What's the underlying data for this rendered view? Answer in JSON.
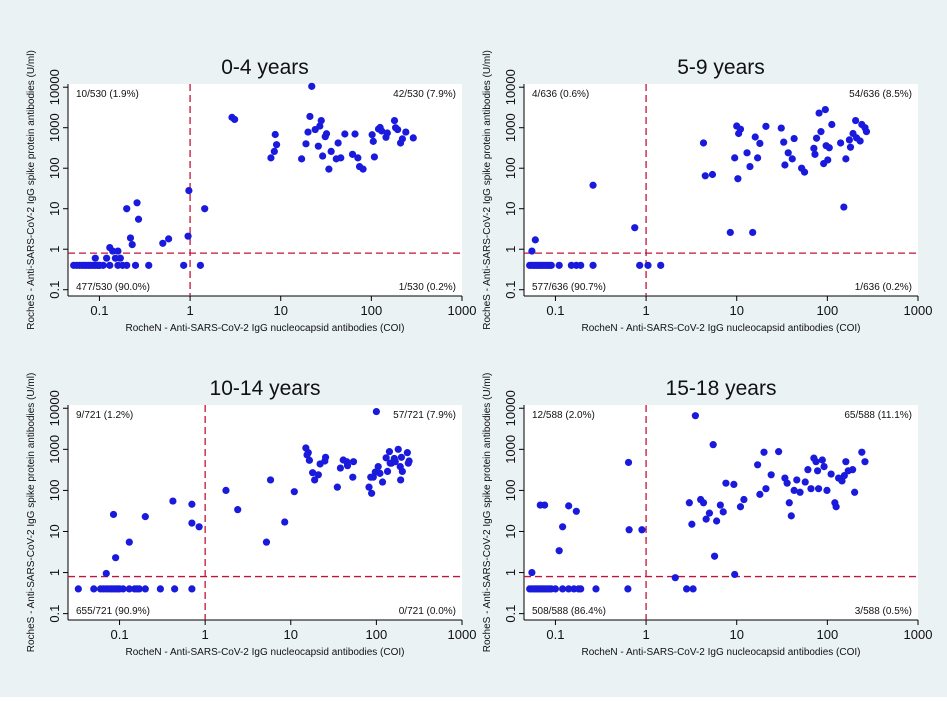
{
  "figure": {
    "background": "#eaf2f3",
    "marker_color": "#1a1adc",
    "reference_line_color": "#c0143c"
  },
  "chart_data": [
    {
      "type": "scatter",
      "title": "0-4 years",
      "xlabel": "RocheN - Anti-SARS-CoV-2 IgG nucleocapsid antibodies (COI)",
      "ylabel": "RocheS - Anti-SARS-CoV-2 IgG spike protein antibodies (U/ml)",
      "xscale": "log",
      "yscale": "log",
      "xlim": [
        0.045,
        1000
      ],
      "ylim": [
        0.07,
        12000
      ],
      "xticks": [
        "0.1",
        "1",
        "10",
        "100",
        "1000"
      ],
      "yticks": [
        "0.1",
        "1",
        "10",
        "100",
        "1000",
        "10000"
      ],
      "vline": 1,
      "hline": 0.8,
      "quadrant_labels": {
        "top_left": "10/530 (1.9%)",
        "top_right": "42/530 (7.9%)",
        "bottom_left": "477/530 (90.0%)",
        "bottom_right": "1/530 (0.2%)"
      },
      "points": [
        [
          0.052,
          0.4
        ],
        [
          0.056,
          0.4
        ],
        [
          0.06,
          0.4
        ],
        [
          0.064,
          0.4
        ],
        [
          0.068,
          0.4
        ],
        [
          0.072,
          0.4
        ],
        [
          0.076,
          0.4
        ],
        [
          0.08,
          0.4
        ],
        [
          0.085,
          0.4
        ],
        [
          0.09,
          0.4
        ],
        [
          0.095,
          0.4
        ],
        [
          0.1,
          0.4
        ],
        [
          0.11,
          0.4
        ],
        [
          0.13,
          0.4
        ],
        [
          0.16,
          0.4
        ],
        [
          0.18,
          0.4
        ],
        [
          0.2,
          0.4
        ],
        [
          0.25,
          0.4
        ],
        [
          0.35,
          0.4
        ],
        [
          0.85,
          0.4
        ],
        [
          0.09,
          0.6
        ],
        [
          0.1,
          0.4
        ],
        [
          0.12,
          0.6
        ],
        [
          0.13,
          1.1
        ],
        [
          0.14,
          0.9
        ],
        [
          0.15,
          0.6
        ],
        [
          0.16,
          0.9
        ],
        [
          0.17,
          0.6
        ],
        [
          0.2,
          10
        ],
        [
          0.22,
          1.9
        ],
        [
          0.23,
          1.3
        ],
        [
          0.26,
          14
        ],
        [
          0.27,
          5.5
        ],
        [
          0.5,
          1.4
        ],
        [
          0.58,
          1.8
        ],
        [
          0.95,
          2.1
        ],
        [
          0.97,
          28
        ],
        [
          1.3,
          0.4
        ],
        [
          1.45,
          10
        ],
        [
          2.9,
          1800
        ],
        [
          3.1,
          1600
        ],
        [
          7.8,
          180
        ],
        [
          8.5,
          260
        ],
        [
          8.7,
          680
        ],
        [
          9,
          380
        ],
        [
          17,
          170
        ],
        [
          19,
          400
        ],
        [
          20,
          780
        ],
        [
          21,
          1900
        ],
        [
          22,
          10500
        ],
        [
          24,
          900
        ],
        [
          26,
          350
        ],
        [
          27,
          1100
        ],
        [
          28,
          1500
        ],
        [
          29,
          200
        ],
        [
          31,
          600
        ],
        [
          32,
          710
        ],
        [
          34,
          95
        ],
        [
          36,
          260
        ],
        [
          41,
          170
        ],
        [
          43,
          420
        ],
        [
          46,
          180
        ],
        [
          51,
          700
        ],
        [
          62,
          220
        ],
        [
          66,
          700
        ],
        [
          71,
          180
        ],
        [
          74,
          110
        ],
        [
          81,
          95
        ],
        [
          102,
          670
        ],
        [
          105,
          460
        ],
        [
          108,
          190
        ],
        [
          120,
          930
        ],
        [
          125,
          1010
        ],
        [
          130,
          830
        ],
        [
          145,
          580
        ],
        [
          150,
          740
        ],
        [
          180,
          1500
        ],
        [
          185,
          1000
        ],
        [
          195,
          900
        ],
        [
          210,
          420
        ],
        [
          220,
          530
        ],
        [
          240,
          780
        ],
        [
          290,
          560
        ]
      ]
    },
    {
      "type": "scatter",
      "title": "5-9 years",
      "xlabel": "RocheN - Anti-SARS-CoV-2 IgG nucleocapsid antibodies (COI)",
      "ylabel": "RocheS - Anti-SARS-CoV-2 IgG spike protein antibodies (U/ml)",
      "xscale": "log",
      "yscale": "log",
      "xlim": [
        0.045,
        1000
      ],
      "ylim": [
        0.07,
        12000
      ],
      "xticks": [
        "0.1",
        "1",
        "10",
        "100",
        "1000"
      ],
      "yticks": [
        "0.1",
        "1",
        "10",
        "100",
        "1000",
        "10000"
      ],
      "vline": 1,
      "hline": 0.8,
      "quadrant_labels": {
        "top_left": "4/636 (0.6%)",
        "top_right": "54/636 (8.5%)",
        "bottom_left": "577/636 (90.7%)",
        "bottom_right": "1/636 (0.2%)"
      },
      "points": [
        [
          0.052,
          0.4
        ],
        [
          0.055,
          0.4
        ],
        [
          0.058,
          0.4
        ],
        [
          0.061,
          0.4
        ],
        [
          0.064,
          0.4
        ],
        [
          0.067,
          0.4
        ],
        [
          0.07,
          0.4
        ],
        [
          0.074,
          0.4
        ],
        [
          0.078,
          0.4
        ],
        [
          0.082,
          0.4
        ],
        [
          0.086,
          0.4
        ],
        [
          0.09,
          0.4
        ],
        [
          0.11,
          0.4
        ],
        [
          0.15,
          0.4
        ],
        [
          0.17,
          0.4
        ],
        [
          0.19,
          0.4
        ],
        [
          0.26,
          0.4
        ],
        [
          0.85,
          0.4
        ],
        [
          1.05,
          0.4
        ],
        [
          1.45,
          0.4
        ],
        [
          0.055,
          0.9
        ],
        [
          0.06,
          1.7
        ],
        [
          0.26,
          38
        ],
        [
          0.75,
          3.4
        ],
        [
          4.3,
          420
        ],
        [
          4.5,
          65
        ],
        [
          5.4,
          70
        ],
        [
          8.5,
          2.6
        ],
        [
          9.5,
          180
        ],
        [
          10,
          1100
        ],
        [
          10.3,
          55
        ],
        [
          10.5,
          720
        ],
        [
          11,
          920
        ],
        [
          13,
          240
        ],
        [
          14,
          110
        ],
        [
          15,
          2.6
        ],
        [
          16,
          590
        ],
        [
          17,
          180
        ],
        [
          18,
          410
        ],
        [
          21,
          1080
        ],
        [
          31,
          980
        ],
        [
          33,
          440
        ],
        [
          34,
          120
        ],
        [
          37,
          240
        ],
        [
          41,
          170
        ],
        [
          43,
          540
        ],
        [
          52,
          100
        ],
        [
          56,
          80
        ],
        [
          71,
          310
        ],
        [
          73,
          220
        ],
        [
          76,
          550
        ],
        [
          81,
          2300
        ],
        [
          85,
          800
        ],
        [
          91,
          130
        ],
        [
          95,
          2800
        ],
        [
          97,
          360
        ],
        [
          101,
          160
        ],
        [
          105,
          320
        ],
        [
          112,
          1200
        ],
        [
          140,
          420
        ],
        [
          152,
          11
        ],
        [
          160,
          170
        ],
        [
          175,
          500
        ],
        [
          180,
          330
        ],
        [
          192,
          720
        ],
        [
          205,
          1500
        ],
        [
          210,
          560
        ],
        [
          230,
          470
        ],
        [
          240,
          1200
        ],
        [
          260,
          1000
        ],
        [
          270,
          800
        ]
      ]
    },
    {
      "type": "scatter",
      "title": "10-14 years",
      "xlabel": "RocheN - Anti-SARS-CoV-2 IgG nucleocapsid antibodies (COI)",
      "ylabel": "RocheS - Anti-SARS-CoV-2 IgG spike protein antibodies (U/ml)",
      "xscale": "log",
      "yscale": "log",
      "xlim": [
        0.025,
        1000
      ],
      "ylim": [
        0.07,
        12000
      ],
      "xticks": [
        "0.1",
        "1",
        "10",
        "100",
        "1000"
      ],
      "yticks": [
        "0.1",
        "1",
        "10",
        "100",
        "1000",
        "10000"
      ],
      "vline": 1,
      "hline": 0.8,
      "quadrant_labels": {
        "top_left": "9/721 (1.2%)",
        "top_right": "57/721 (7.9%)",
        "bottom_left": "655/721 (90.9%)",
        "bottom_right": "0/721 (0.0%)"
      },
      "points": [
        [
          0.033,
          0.4
        ],
        [
          0.05,
          0.4
        ],
        [
          0.06,
          0.4
        ],
        [
          0.065,
          0.4
        ],
        [
          0.07,
          0.4
        ],
        [
          0.075,
          0.4
        ],
        [
          0.08,
          0.4
        ],
        [
          0.085,
          0.4
        ],
        [
          0.09,
          0.4
        ],
        [
          0.095,
          0.4
        ],
        [
          0.1,
          0.4
        ],
        [
          0.11,
          0.4
        ],
        [
          0.13,
          0.4
        ],
        [
          0.15,
          0.4
        ],
        [
          0.16,
          0.4
        ],
        [
          0.17,
          0.4
        ],
        [
          0.2,
          0.4
        ],
        [
          0.3,
          0.4
        ],
        [
          0.44,
          0.4
        ],
        [
          0.7,
          0.4
        ],
        [
          0.07,
          0.95
        ],
        [
          0.085,
          26
        ],
        [
          0.09,
          2.3
        ],
        [
          0.13,
          5.5
        ],
        [
          0.2,
          23
        ],
        [
          0.42,
          55
        ],
        [
          0.7,
          16
        ],
        [
          0.7,
          46
        ],
        [
          0.85,
          13
        ],
        [
          1.75,
          100
        ],
        [
          2.4,
          34
        ],
        [
          5.2,
          5.5
        ],
        [
          5.8,
          180
        ],
        [
          8.5,
          17
        ],
        [
          11,
          93
        ],
        [
          15,
          1080
        ],
        [
          15.5,
          730
        ],
        [
          16,
          830
        ],
        [
          16.5,
          540
        ],
        [
          18,
          270
        ],
        [
          19,
          180
        ],
        [
          21,
          240
        ],
        [
          22,
          440
        ],
        [
          25,
          520
        ],
        [
          25.5,
          640
        ],
        [
          35,
          120
        ],
        [
          38,
          350
        ],
        [
          41,
          550
        ],
        [
          45,
          500
        ],
        [
          46,
          400
        ],
        [
          53,
          210
        ],
        [
          54,
          500
        ],
        [
          82,
          120
        ],
        [
          86,
          210
        ],
        [
          88,
          85
        ],
        [
          92,
          210
        ],
        [
          97,
          280
        ],
        [
          100,
          8300
        ],
        [
          105,
          380
        ],
        [
          110,
          260
        ],
        [
          118,
          160
        ],
        [
          130,
          620
        ],
        [
          135,
          290
        ],
        [
          142,
          880
        ],
        [
          145,
          460
        ],
        [
          150,
          460
        ],
        [
          162,
          600
        ],
        [
          166,
          500
        ],
        [
          180,
          1000
        ],
        [
          190,
          380
        ],
        [
          192,
          180
        ],
        [
          196,
          640
        ],
        [
          201,
          290
        ],
        [
          230,
          830
        ],
        [
          236,
          460
        ],
        [
          241,
          520
        ]
      ]
    },
    {
      "type": "scatter",
      "title": "15-18 years",
      "xlabel": "RocheN - Anti-SARS-CoV-2 IgG nucleocapsid antibodies (COI)",
      "ylabel": "RocheS - Anti-SARS-CoV-2 IgG spike protein antibodies (U/ml)",
      "xscale": "log",
      "yscale": "log",
      "xlim": [
        0.045,
        1000
      ],
      "ylim": [
        0.07,
        12000
      ],
      "xticks": [
        "0.1",
        "1",
        "10",
        "100",
        "1000"
      ],
      "yticks": [
        "0.1",
        "1",
        "10",
        "100",
        "1000",
        "10000"
      ],
      "vline": 1,
      "hline": 0.8,
      "quadrant_labels": {
        "top_left": "12/588 (2.0%)",
        "top_right": "65/588 (11.1%)",
        "bottom_left": "508/588 (86.4%)",
        "bottom_right": "3/588 (0.5%)"
      },
      "points": [
        [
          0.052,
          0.4
        ],
        [
          0.055,
          0.4
        ],
        [
          0.058,
          0.4
        ],
        [
          0.061,
          0.4
        ],
        [
          0.064,
          0.4
        ],
        [
          0.067,
          0.4
        ],
        [
          0.07,
          0.4
        ],
        [
          0.074,
          0.4
        ],
        [
          0.078,
          0.4
        ],
        [
          0.082,
          0.4
        ],
        [
          0.086,
          0.4
        ],
        [
          0.09,
          0.4
        ],
        [
          0.1,
          0.4
        ],
        [
          0.12,
          0.4
        ],
        [
          0.14,
          0.4
        ],
        [
          0.16,
          0.4
        ],
        [
          0.18,
          0.4
        ],
        [
          0.19,
          0.4
        ],
        [
          0.28,
          0.4
        ],
        [
          0.63,
          0.4
        ],
        [
          2.8,
          0.4
        ],
        [
          3.3,
          0.4
        ],
        [
          0.055,
          1.0
        ],
        [
          0.068,
          44
        ],
        [
          0.076,
          44
        ],
        [
          0.11,
          3.4
        ],
        [
          0.12,
          13
        ],
        [
          0.14,
          42
        ],
        [
          0.17,
          31
        ],
        [
          0.64,
          480
        ],
        [
          0.65,
          11
        ],
        [
          0.9,
          11
        ],
        [
          2.1,
          0.75
        ],
        [
          3.0,
          50
        ],
        [
          3.2,
          15
        ],
        [
          3.5,
          6600
        ],
        [
          4,
          60
        ],
        [
          4.3,
          50
        ],
        [
          4.6,
          20
        ],
        [
          5,
          28
        ],
        [
          5.5,
          1300
        ],
        [
          5.7,
          2.5
        ],
        [
          6,
          18
        ],
        [
          6.6,
          44
        ],
        [
          7.1,
          30
        ],
        [
          7.6,
          150
        ],
        [
          9.3,
          140
        ],
        [
          9.5,
          0.9
        ],
        [
          11,
          40
        ],
        [
          12,
          60
        ],
        [
          17,
          420
        ],
        [
          18,
          80
        ],
        [
          20,
          850
        ],
        [
          21,
          110
        ],
        [
          24,
          240
        ],
        [
          29,
          880
        ],
        [
          34,
          200
        ],
        [
          36,
          150
        ],
        [
          38,
          50
        ],
        [
          40,
          24
        ],
        [
          43,
          100
        ],
        [
          46,
          180
        ],
        [
          50,
          90
        ],
        [
          57,
          160
        ],
        [
          61,
          320
        ],
        [
          66,
          110
        ],
        [
          71,
          610
        ],
        [
          75,
          500
        ],
        [
          78,
          300
        ],
        [
          80,
          110
        ],
        [
          88,
          550
        ],
        [
          92,
          380
        ],
        [
          99,
          100
        ],
        [
          110,
          250
        ],
        [
          121,
          50
        ],
        [
          125,
          40
        ],
        [
          133,
          200
        ],
        [
          145,
          170
        ],
        [
          154,
          230
        ],
        [
          160,
          500
        ],
        [
          170,
          300
        ],
        [
          190,
          320
        ],
        [
          200,
          90
        ],
        [
          240,
          850
        ],
        [
          260,
          500
        ]
      ]
    }
  ]
}
